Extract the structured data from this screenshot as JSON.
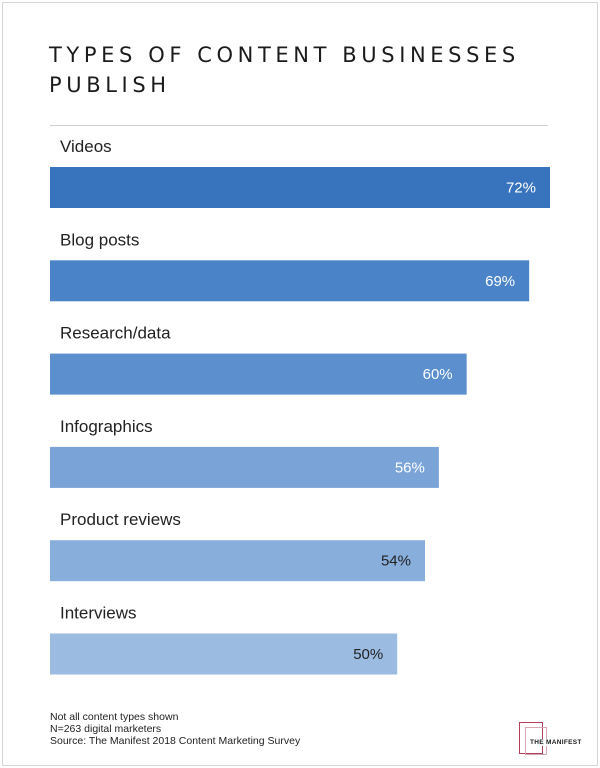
{
  "chart_data": {
    "type": "bar",
    "orientation": "horizontal",
    "title": "TYPES OF CONTENT BUSINESSES PUBLISH",
    "categories": [
      "Videos",
      "Blog posts",
      "Research/data",
      "Infographics",
      "Product reviews",
      "Interviews"
    ],
    "values": [
      72,
      69,
      60,
      56,
      54,
      50
    ],
    "value_labels": [
      "72%",
      "69%",
      "60%",
      "56%",
      "54%",
      "50%"
    ],
    "bar_colors": [
      "#3873be",
      "#4a83c7",
      "#5b8fcd",
      "#7aa4d7",
      "#88aedc",
      "#9bbbe1"
    ],
    "value_label_colors": [
      "#ffffff",
      "#ffffff",
      "#ffffff",
      "#ffffff",
      "#222222",
      "#222222"
    ],
    "xlim": [
      0,
      72
    ],
    "grid": false,
    "legend": "none"
  },
  "footer": {
    "notes": [
      "Not all content types shown",
      "N=263 digital marketers",
      "Source: The Manifest 2018 Content Marketing Survey"
    ],
    "logo_text": "THE MANIFEST",
    "logo_color": "#b3405b"
  }
}
